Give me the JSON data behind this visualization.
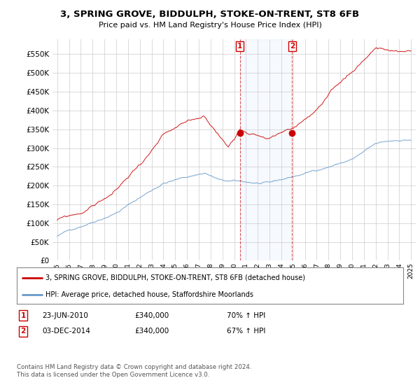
{
  "title": "3, SPRING GROVE, BIDDULPH, STOKE-ON-TRENT, ST8 6FB",
  "subtitle": "Price paid vs. HM Land Registry's House Price Index (HPI)",
  "ylim": [
    0,
    590000
  ],
  "ytick_vals": [
    0,
    50000,
    100000,
    150000,
    200000,
    250000,
    300000,
    350000,
    400000,
    450000,
    500000,
    550000
  ],
  "legend_line1": "3, SPRING GROVE, BIDDULPH, STOKE-ON-TRENT, ST8 6FB (detached house)",
  "legend_line2": "HPI: Average price, detached house, Staffordshire Moorlands",
  "sale1_date": "23-JUN-2010",
  "sale1_price": "£340,000",
  "sale1_hpi": "70% ↑ HPI",
  "sale2_date": "03-DEC-2014",
  "sale2_price": "£340,000",
  "sale2_hpi": "67% ↑ HPI",
  "sale1_x": 2010.48,
  "sale1_y": 340000,
  "sale2_x": 2014.92,
  "sale2_y": 340000,
  "footer": "Contains HM Land Registry data © Crown copyright and database right 2024.\nThis data is licensed under the Open Government Licence v3.0.",
  "hpi_color": "#6699cc",
  "price_color": "#cc0000",
  "background_color": "#ffffff",
  "grid_color": "#cccccc",
  "xlim_left": 1994.6,
  "xlim_right": 2025.4
}
